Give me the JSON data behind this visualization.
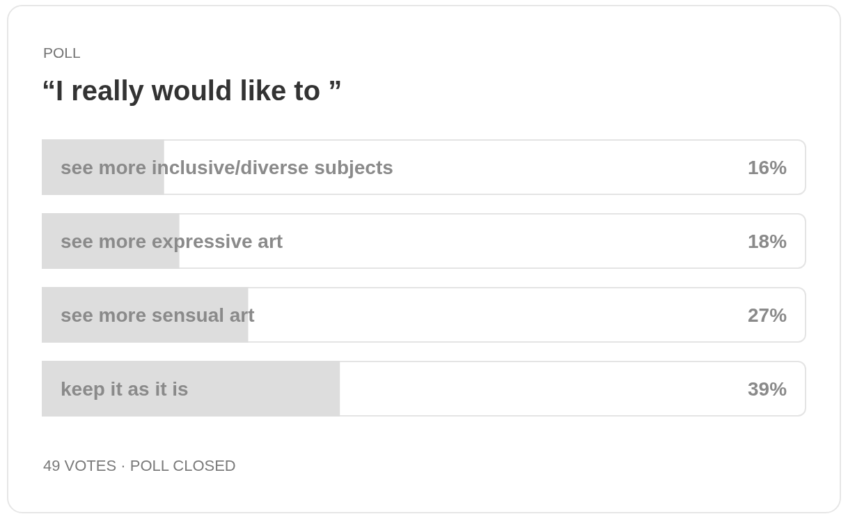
{
  "chart_data": {
    "type": "bar",
    "orientation": "horizontal",
    "subtitle": "POLL",
    "title": "“I really would like to ”",
    "categories": [
      "see more inclusive/diverse subjects",
      "see more expressive art",
      "see more sensual art",
      "keep it as it is"
    ],
    "values": [
      16,
      18,
      27,
      39
    ],
    "value_labels": [
      "16%",
      "18%",
      "27%",
      "39%"
    ],
    "color": "#dddddd",
    "xlim": [
      0,
      100
    ],
    "tick_labels": "y",
    "annotations": [
      "49 VOTES · POLL CLOSED"
    ]
  }
}
